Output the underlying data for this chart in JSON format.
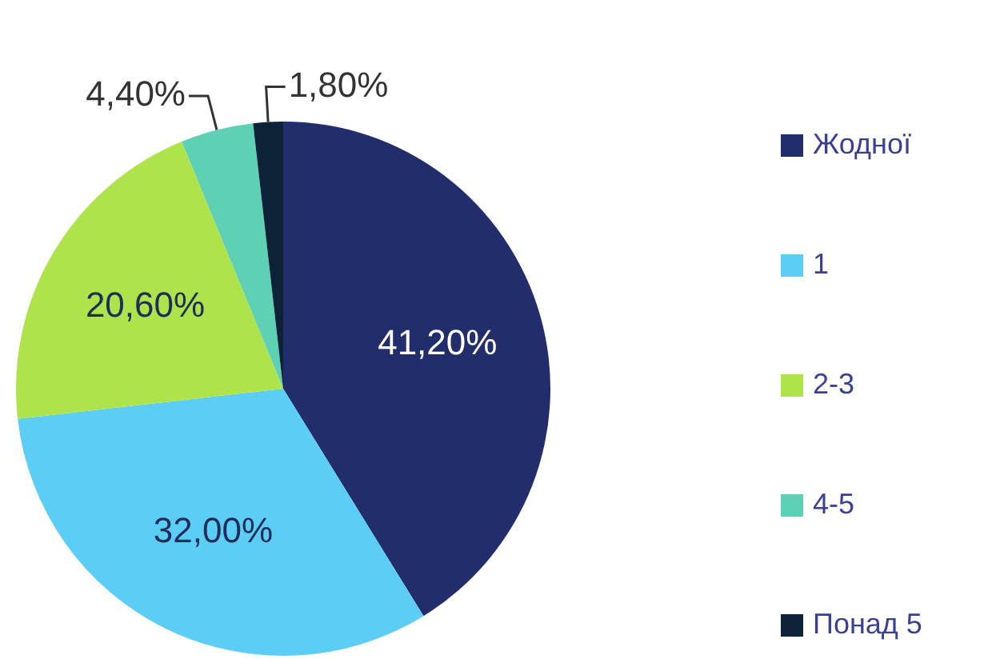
{
  "chart_data": {
    "type": "pie",
    "categories": [
      "Жодної",
      "1",
      "2-3",
      "4-5",
      "Понад 5"
    ],
    "values": [
      41.2,
      32.0,
      20.6,
      4.4,
      1.8
    ],
    "colors": [
      "#212e6b",
      "#5ccdf4",
      "#aee34c",
      "#5ed0b3",
      "#0c2236"
    ],
    "value_labels": [
      "41,20%",
      "32,00%",
      "20,60%",
      "4,40%",
      "1,80%"
    ],
    "legend": "right"
  }
}
